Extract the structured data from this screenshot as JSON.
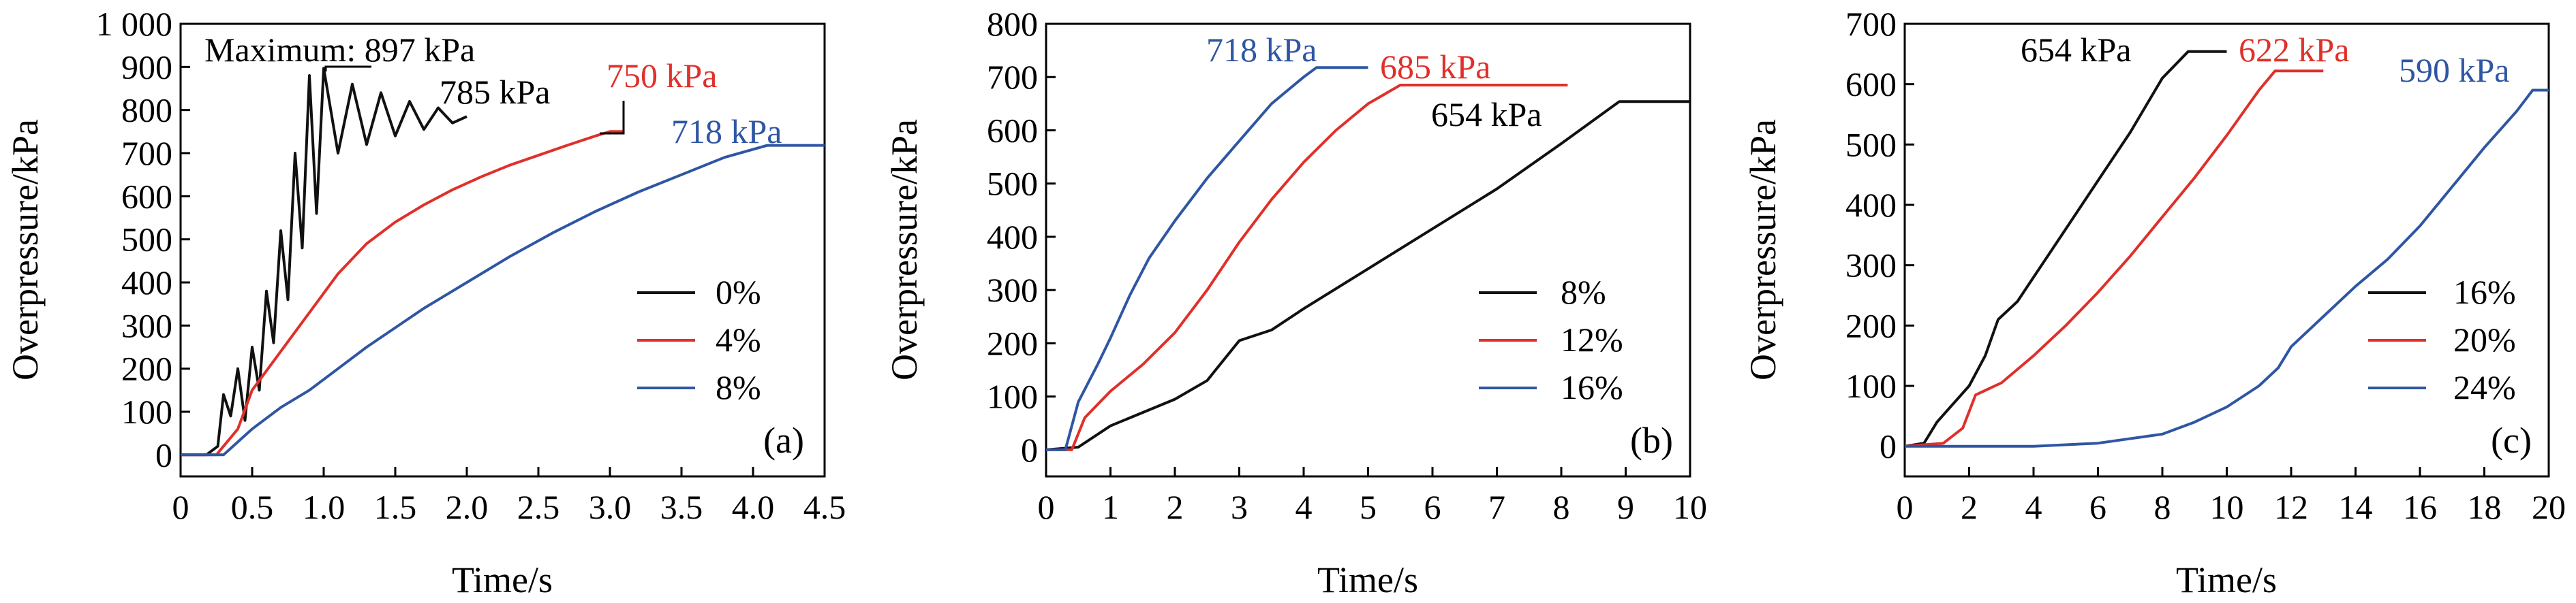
{
  "chart_data": [
    {
      "type": "line",
      "panel_label": "(a)",
      "xlabel": "Time/s",
      "ylabel": "Overpressure/kPa",
      "xlim": [
        0,
        4.5
      ],
      "ylim": [
        -50,
        1000
      ],
      "xticks": [
        0,
        0.5,
        1,
        1.5,
        2,
        2.5,
        3,
        3.5,
        4,
        4.5
      ],
      "xtick_labels": [
        "0",
        "0.5",
        "1.0",
        "1.5",
        "2.0",
        "2.5",
        "3.0",
        "3.5",
        "4.0",
        "4.5"
      ],
      "yticks": [
        0,
        100,
        200,
        300,
        400,
        500,
        600,
        700,
        800,
        900,
        1000
      ],
      "ytick_labels": [
        "0",
        "100",
        "200",
        "300",
        "400",
        "500",
        "600",
        "700",
        "800",
        "900",
        "1 000"
      ],
      "legend_position": "right",
      "series": [
        {
          "name": "0%",
          "color": "#111111",
          "x": [
            0,
            0.18,
            0.26,
            0.3,
            0.35,
            0.4,
            0.45,
            0.5,
            0.55,
            0.6,
            0.65,
            0.7,
            0.75,
            0.8,
            0.85,
            0.9,
            0.95,
            1.0,
            1.1,
            1.2,
            1.3,
            1.4,
            1.5,
            1.6,
            1.7,
            1.8,
            1.9,
            2.0
          ],
          "values": [
            0,
            0,
            20,
            140,
            90,
            200,
            80,
            250,
            150,
            380,
            260,
            520,
            360,
            700,
            480,
            880,
            560,
            897,
            700,
            860,
            720,
            840,
            740,
            820,
            755,
            805,
            770,
            785
          ],
          "annotation": "785 kPa"
        },
        {
          "name": "4%",
          "color": "#e0302a",
          "x": [
            0,
            0.25,
            0.4,
            0.5,
            0.7,
            0.9,
            1.1,
            1.3,
            1.5,
            1.7,
            1.9,
            2.1,
            2.3,
            2.5,
            2.7,
            2.9,
            3.0,
            3.1
          ],
          "values": [
            0,
            0,
            60,
            150,
            240,
            330,
            420,
            490,
            540,
            580,
            615,
            645,
            672,
            695,
            718,
            740,
            750,
            750
          ],
          "annotation": "750 kPa"
        },
        {
          "name": "8%",
          "color": "#2f56a3",
          "x": [
            0,
            0.3,
            0.5,
            0.7,
            0.9,
            1.1,
            1.3,
            1.5,
            1.7,
            2.0,
            2.3,
            2.6,
            2.9,
            3.2,
            3.5,
            3.8,
            4.1,
            4.5
          ],
          "values": [
            0,
            0,
            60,
            110,
            150,
            200,
            250,
            295,
            340,
            400,
            460,
            515,
            565,
            610,
            650,
            690,
            718,
            718
          ],
          "annotation": "718 kPa"
        }
      ],
      "annotations": [
        "Maximum: 897 kPa"
      ]
    },
    {
      "type": "line",
      "panel_label": "(b)",
      "xlabel": "Time/s",
      "ylabel": "Overpressure/kPa",
      "xlim": [
        0,
        10
      ],
      "ylim": [
        -50,
        800
      ],
      "xticks": [
        0,
        1,
        2,
        3,
        4,
        5,
        6,
        7,
        8,
        9,
        10
      ],
      "xtick_labels": [
        "0",
        "1",
        "2",
        "3",
        "4",
        "5",
        "6",
        "7",
        "8",
        "9",
        "10"
      ],
      "yticks": [
        0,
        100,
        200,
        300,
        400,
        500,
        600,
        700,
        800
      ],
      "ytick_labels": [
        "0",
        "100",
        "200",
        "300",
        "400",
        "500",
        "600",
        "700",
        "800"
      ],
      "legend_position": "right",
      "series": [
        {
          "name": "8%",
          "color": "#111111",
          "x": [
            0,
            0.5,
            1,
            1.5,
            2,
            2.5,
            2.8,
            3.0,
            3.5,
            4,
            5,
            6,
            7,
            8,
            8.9,
            10
          ],
          "values": [
            0,
            5,
            45,
            70,
            95,
            130,
            175,
            205,
            225,
            265,
            340,
            415,
            490,
            575,
            654,
            654
          ],
          "annotation": "654 kPa"
        },
        {
          "name": "12%",
          "color": "#e0302a",
          "x": [
            0,
            0.4,
            0.6,
            1,
            1.5,
            2,
            2.5,
            3,
            3.5,
            4,
            4.5,
            5,
            5.5,
            8.1
          ],
          "values": [
            0,
            0,
            60,
            110,
            160,
            220,
            300,
            390,
            470,
            540,
            600,
            650,
            685,
            685
          ],
          "annotation": "685 kPa"
        },
        {
          "name": "16%",
          "color": "#2f56a3",
          "x": [
            0,
            0.3,
            0.5,
            0.8,
            1,
            1.3,
            1.6,
            2,
            2.5,
            3,
            3.5,
            4,
            4.2,
            5
          ],
          "values": [
            0,
            0,
            90,
            160,
            210,
            290,
            360,
            430,
            510,
            580,
            650,
            700,
            718,
            718
          ],
          "annotation": "718 kPa"
        }
      ]
    },
    {
      "type": "line",
      "panel_label": "(c)",
      "xlabel": "Time/s",
      "ylabel": "Overpressure/kPa",
      "xlim": [
        0,
        20
      ],
      "ylim": [
        -50,
        700
      ],
      "xticks": [
        0,
        2,
        4,
        6,
        8,
        10,
        12,
        14,
        16,
        18,
        20
      ],
      "xtick_labels": [
        "0",
        "2",
        "4",
        "6",
        "8",
        "10",
        "12",
        "14",
        "16",
        "18",
        "20"
      ],
      "yticks": [
        0,
        100,
        200,
        300,
        400,
        500,
        600,
        700
      ],
      "ytick_labels": [
        "0",
        "100",
        "200",
        "300",
        "400",
        "500",
        "600",
        "700"
      ],
      "legend_position": "right",
      "series": [
        {
          "name": "16%",
          "color": "#111111",
          "x": [
            0,
            0.6,
            1,
            1.5,
            2,
            2.5,
            2.9,
            3.5,
            4,
            5,
            6,
            7,
            8,
            8.8,
            10
          ],
          "values": [
            0,
            5,
            40,
            70,
            100,
            150,
            210,
            240,
            280,
            360,
            440,
            520,
            610,
            654,
            654
          ],
          "annotation": "654 kPa"
        },
        {
          "name": "20%",
          "color": "#e0302a",
          "x": [
            0,
            1.2,
            1.8,
            2.2,
            3,
            4,
            5,
            6,
            7,
            8,
            9,
            10,
            11,
            11.5,
            13
          ],
          "values": [
            0,
            5,
            30,
            85,
            105,
            150,
            200,
            255,
            315,
            380,
            445,
            515,
            590,
            622,
            622
          ],
          "annotation": "622 kPa"
        },
        {
          "name": "24%",
          "color": "#2f56a3",
          "x": [
            0,
            4,
            6,
            8,
            9,
            10,
            11,
            11.6,
            12,
            13,
            14,
            15,
            16,
            17,
            18,
            19,
            19.5,
            20
          ],
          "values": [
            0,
            0,
            5,
            20,
            40,
            65,
            100,
            130,
            165,
            215,
            265,
            310,
            365,
            430,
            495,
            555,
            590,
            590
          ],
          "annotation": "590 kPa"
        }
      ]
    }
  ]
}
